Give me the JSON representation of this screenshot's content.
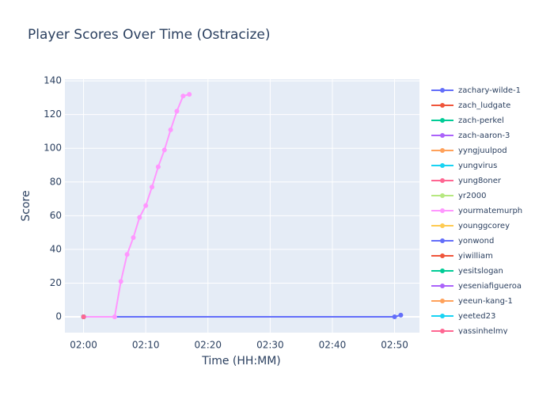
{
  "chart_data": {
    "type": "line",
    "title": "Player Scores Over Time (Ostracize)",
    "x_label": "Time (HH:MM)",
    "y_label": "Score",
    "xlim": [
      "01:57",
      "02:54"
    ],
    "xticks": [
      "02:00",
      "02:10",
      "02:20",
      "02:30",
      "02:40",
      "02:50"
    ],
    "ylim": [
      -9.4,
      141
    ],
    "yticks": [
      0,
      20,
      40,
      60,
      80,
      100,
      120,
      140
    ],
    "grid": true,
    "legend": "right",
    "series": [
      {
        "name": "zachary-wilde-1",
        "color": "#636efa",
        "x": [
          "02:00",
          "02:50",
          "02:51"
        ],
        "values": [
          0,
          0,
          1
        ]
      },
      {
        "name": "zach_ludgate",
        "color": "#ef553b",
        "x": [
          "02:00"
        ],
        "values": [
          0
        ]
      },
      {
        "name": "zach-perkel",
        "color": "#00cc96",
        "x": [
          "02:00"
        ],
        "values": [
          0
        ]
      },
      {
        "name": "zach-aaron-3",
        "color": "#ab63fa",
        "x": [
          "02:00"
        ],
        "values": [
          0
        ]
      },
      {
        "name": "yyngjuulpod",
        "color": "#ffa15a",
        "x": [
          "02:00"
        ],
        "values": [
          0
        ]
      },
      {
        "name": "yungvirus",
        "color": "#19d3f3",
        "x": [
          "02:00"
        ],
        "values": [
          0
        ]
      },
      {
        "name": "yung8oner",
        "color": "#ff6692",
        "x": [
          "02:00"
        ],
        "values": [
          0
        ]
      },
      {
        "name": "yr2000",
        "color": "#b6e880",
        "x": [
          "02:00"
        ],
        "values": [
          0
        ]
      },
      {
        "name": "yourmatemurph",
        "color": "#ff97ff",
        "x": [
          "02:00",
          "02:05",
          "02:06",
          "02:07",
          "02:08",
          "02:09",
          "02:10",
          "02:11",
          "02:12",
          "02:13",
          "02:14",
          "02:15",
          "02:16",
          "02:17"
        ],
        "values": [
          0,
          0,
          21,
          37,
          47,
          59,
          66,
          77,
          89,
          99,
          111,
          122,
          131,
          132
        ]
      },
      {
        "name": "younggcorey",
        "color": "#fecb52",
        "x": [
          "02:00"
        ],
        "values": [
          0
        ]
      },
      {
        "name": "yonwond",
        "color": "#636efa",
        "x": [
          "02:00"
        ],
        "values": [
          0
        ]
      },
      {
        "name": "yiwilliam",
        "color": "#ef553b",
        "x": [
          "02:00"
        ],
        "values": [
          0
        ]
      },
      {
        "name": "yesitslogan",
        "color": "#00cc96",
        "x": [
          "02:00"
        ],
        "values": [
          0
        ]
      },
      {
        "name": "yeseniafigueroa",
        "color": "#ab63fa",
        "x": [
          "02:00"
        ],
        "values": [
          0
        ]
      },
      {
        "name": "yeeun-kang-1",
        "color": "#ffa15a",
        "x": [
          "02:00"
        ],
        "values": [
          0
        ]
      },
      {
        "name": "yeeted23",
        "color": "#19d3f3",
        "x": [
          "02:00"
        ],
        "values": [
          0
        ]
      },
      {
        "name": "yassinhelmy",
        "color": "#ff6692",
        "x": [
          "02:00"
        ],
        "values": [
          0
        ]
      }
    ]
  }
}
